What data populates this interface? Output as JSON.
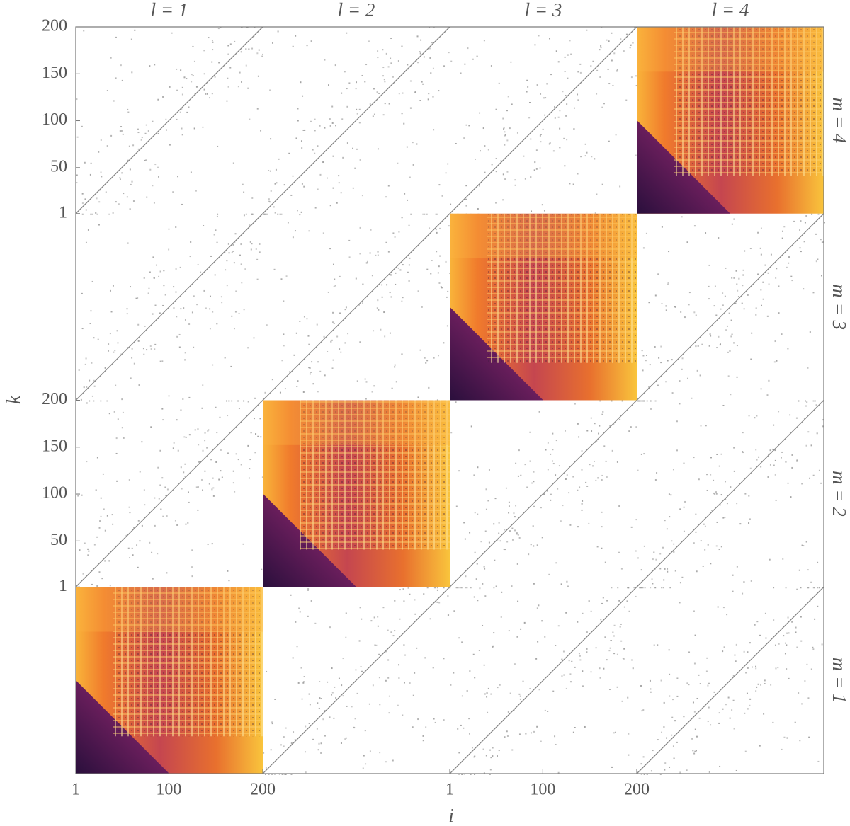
{
  "chart_data": {
    "type": "heatmap",
    "x_label": "i",
    "y_label": "k",
    "column_labels": [
      "l = 1",
      "l = 2",
      "l = 3",
      "l = 4"
    ],
    "row_labels": [
      "m = 1",
      "m = 2",
      "m = 3",
      "m = 4"
    ],
    "xlim": [
      1,
      200
    ],
    "ylim": [
      1,
      200
    ],
    "xticks": [
      1,
      100,
      200
    ],
    "yticks": [
      1,
      50,
      100,
      150,
      200
    ]
  }
}
